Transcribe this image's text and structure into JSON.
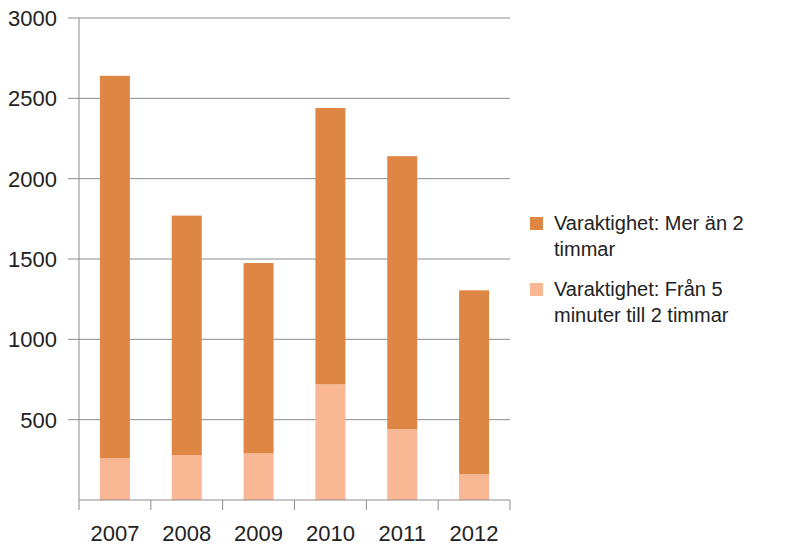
{
  "chart_data": {
    "type": "bar",
    "stacked": true,
    "grid": true,
    "categories": [
      "2007",
      "2008",
      "2009",
      "2010",
      "2011",
      "2012"
    ],
    "series": [
      {
        "name": "Varaktighet: Från 5 minuter till 2 timmar",
        "color": "#f9b793",
        "values": [
          260,
          280,
          290,
          720,
          440,
          160
        ]
      },
      {
        "name": "Varaktighet: Mer än 2 timmar",
        "color": "#de8744",
        "values": [
          2380,
          1490,
          1185,
          1720,
          1700,
          1145
        ]
      }
    ],
    "ylim": [
      0,
      3000
    ],
    "yticks": [
      500,
      1000,
      1500,
      2000,
      2500,
      3000
    ],
    "legend": "right"
  }
}
